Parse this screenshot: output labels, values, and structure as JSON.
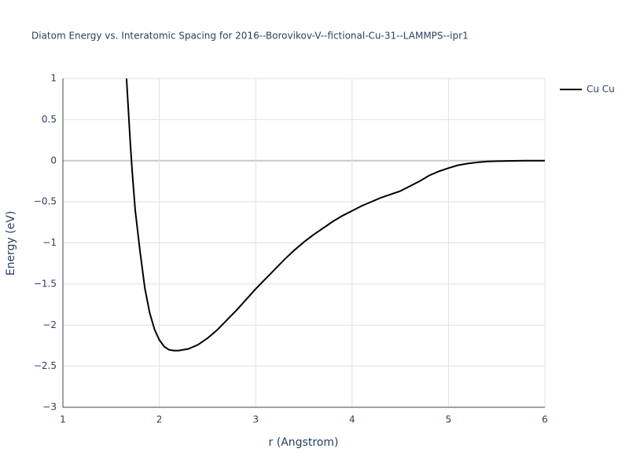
{
  "chart_data": {
    "type": "line",
    "title": "Diatom Energy vs. Interatomic Spacing for 2016--Borovikov-V--fictional-Cu-31--LAMMPS--ipr1",
    "x_label": "r (Angstrom)",
    "y_label": "Energy (eV)",
    "x": [
      1.66,
      1.68,
      1.7,
      1.72,
      1.75,
      1.8,
      1.85,
      1.9,
      1.95,
      2.0,
      2.05,
      2.1,
      2.15,
      2.2,
      2.3,
      2.4,
      2.5,
      2.6,
      2.7,
      2.8,
      2.9,
      3.0,
      3.1,
      3.2,
      3.3,
      3.4,
      3.5,
      3.6,
      3.7,
      3.8,
      3.9,
      4.0,
      4.1,
      4.2,
      4.3,
      4.4,
      4.5,
      4.6,
      4.7,
      4.8,
      4.9,
      5.0,
      5.1,
      5.2,
      5.3,
      5.4,
      5.6,
      5.8,
      6.0
    ],
    "series": [
      {
        "name": "Cu Cu",
        "color": "#000000",
        "values": [
          1.0,
          0.6,
          0.2,
          -0.15,
          -0.6,
          -1.1,
          -1.55,
          -1.85,
          -2.05,
          -2.18,
          -2.26,
          -2.3,
          -2.31,
          -2.31,
          -2.29,
          -2.24,
          -2.16,
          -2.06,
          -1.94,
          -1.82,
          -1.69,
          -1.56,
          -1.44,
          -1.32,
          -1.2,
          -1.09,
          -0.99,
          -0.9,
          -0.82,
          -0.74,
          -0.67,
          -0.61,
          -0.55,
          -0.5,
          -0.45,
          -0.41,
          -0.37,
          -0.31,
          -0.25,
          -0.18,
          -0.13,
          -0.09,
          -0.055,
          -0.035,
          -0.02,
          -0.01,
          -0.003,
          0,
          0
        ]
      }
    ],
    "xlim": [
      1,
      6
    ],
    "xticks": [
      1,
      2,
      3,
      4,
      5,
      6
    ],
    "ylim": [
      -3,
      1
    ],
    "yticks": [
      {
        "value": -3,
        "label": "−3"
      },
      {
        "value": -2.5,
        "label": "−2.5"
      },
      {
        "value": -2,
        "label": "−2"
      },
      {
        "value": -1.5,
        "label": "−1.5"
      },
      {
        "value": -1,
        "label": "−1"
      },
      {
        "value": -0.5,
        "label": "−0.5"
      },
      0,
      0.5,
      1
    ],
    "grid": true,
    "legend": "top-right"
  }
}
